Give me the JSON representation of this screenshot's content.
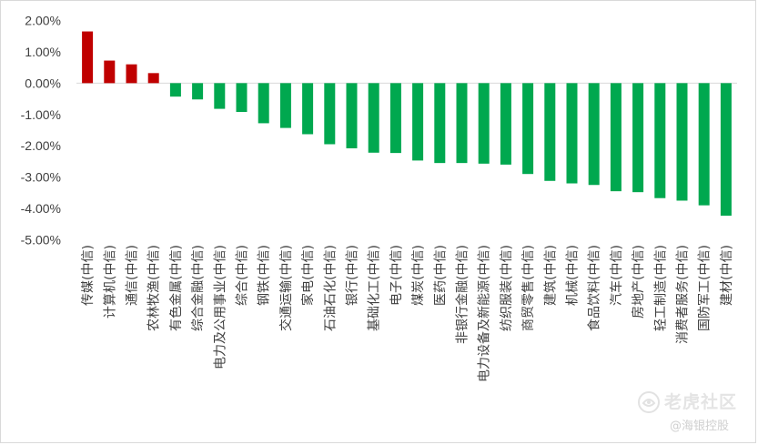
{
  "chart_data": {
    "type": "bar",
    "categories": [
      "传媒(中信)",
      "计算机(中信)",
      "通信(中信)",
      "农林牧渔(中信)",
      "有色金属(中信)",
      "综合金融(中信)",
      "电力及公用事业(中信)",
      "综合(中信)",
      "钢铁(中信)",
      "交通运输(中信)",
      "家电(中信)",
      "石油石化(中信)",
      "银行(中信)",
      "基础化工(中信)",
      "电子(中信)",
      "煤炭(中信)",
      "医药(中信)",
      "非银行金融(中信)",
      "电力设备及新能源(中信)",
      "纺织服装(中信)",
      "商贸零售(中信)",
      "建筑(中信)",
      "机械(中信)",
      "食品饮料(中信)",
      "汽车(中信)",
      "房地产(中信)",
      "轻工制造(中信)",
      "消费者服务(中信)",
      "国防军工(中信)",
      "建材(中信)"
    ],
    "values": [
      1.65,
      0.72,
      0.6,
      0.32,
      -0.43,
      -0.52,
      -0.82,
      -0.92,
      -1.28,
      -1.43,
      -1.63,
      -1.95,
      -2.08,
      -2.22,
      -2.23,
      -2.47,
      -2.55,
      -2.55,
      -2.57,
      -2.6,
      -2.9,
      -3.12,
      -3.2,
      -3.25,
      -3.45,
      -3.48,
      -3.67,
      -3.75,
      -3.9,
      -4.23
    ],
    "yticks": [
      "2.00%",
      "1.00%",
      "0.00%",
      "-1.00%",
      "-2.00%",
      "-3.00%",
      "-4.00%",
      "-5.00%"
    ],
    "ylim": [
      -5,
      2
    ],
    "positive_color": "#c00000",
    "negative_color": "#00a84f",
    "grid": false,
    "title": "",
    "xlabel": "",
    "ylabel": ""
  },
  "watermark": {
    "title": "老虎社区",
    "subtitle": "@海银控股",
    "logo_icon": "tiger-community-logo-icon"
  }
}
